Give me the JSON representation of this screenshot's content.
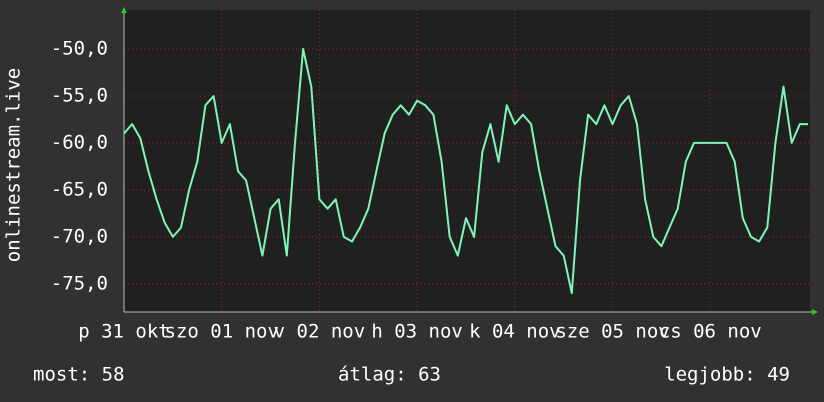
{
  "chart_data": {
    "type": "line",
    "y_label": "onlinestream.live",
    "x": [
      0,
      2,
      4,
      6,
      8,
      10,
      12,
      14,
      16,
      18,
      20,
      22,
      24,
      26,
      28,
      30,
      32,
      34,
      36,
      38,
      40,
      42,
      44,
      46,
      48,
      50,
      52,
      54,
      56,
      58,
      60,
      62,
      64,
      66,
      68,
      70,
      72,
      74,
      76,
      78,
      80,
      82,
      84,
      86,
      88,
      90,
      92,
      94,
      96,
      98,
      100,
      102,
      104,
      106,
      108,
      110,
      112,
      114,
      116,
      118,
      120,
      122,
      124,
      126,
      128,
      130,
      132,
      134,
      136,
      138,
      140,
      142,
      144,
      146,
      148,
      150,
      152,
      154,
      156,
      158,
      160,
      162,
      164,
      166,
      168
    ],
    "series": [
      {
        "color": "#7ff5b8",
        "values": [
          -59,
          -58,
          -59.5,
          -63,
          -66,
          -68.5,
          -70,
          -69,
          -65,
          -62,
          -56,
          -55,
          -60,
          -58,
          -63,
          -64,
          -68,
          -72,
          -67,
          -66,
          -72,
          -60,
          -50,
          -54,
          -66,
          -67,
          -66,
          -70,
          -70.5,
          -69,
          -67,
          -63,
          -59,
          -57,
          -56,
          -57,
          -55.5,
          -56,
          -57,
          -62,
          -70,
          -72,
          -68,
          -70,
          -61,
          -58,
          -62,
          -56,
          -58,
          -57,
          -58,
          -63,
          -67,
          -71,
          -72,
          -76,
          -64,
          -57,
          -58,
          -56,
          -58,
          -56,
          -55,
          -58,
          -66,
          -70,
          -71,
          -69,
          -67,
          -62,
          -60,
          -60,
          -60,
          -60,
          -60,
          -62,
          -68,
          -70,
          -70.5,
          -69,
          -60,
          -54,
          -60,
          -58,
          -58
        ]
      }
    ],
    "xlim": [
      0,
      168.5
    ],
    "xticks": [
      {
        "value": 0,
        "label": "p 31 okt"
      },
      {
        "value": 24,
        "label": "szo 01 nov"
      },
      {
        "value": 48,
        "label": "v 02 nov"
      },
      {
        "value": 72,
        "label": "h 03 nov"
      },
      {
        "value": 96,
        "label": "k 04 nov"
      },
      {
        "value": 120,
        "label": "sze 05 nov"
      },
      {
        "value": 144,
        "label": "cs 06 nov"
      }
    ],
    "ylim": [
      -78,
      -45.85
    ],
    "yticks": [
      {
        "value": -75,
        "label": "-75,0"
      },
      {
        "value": -70,
        "label": "-70,0"
      },
      {
        "value": -65,
        "label": "-65,0"
      },
      {
        "value": -60,
        "label": "-60,0"
      },
      {
        "value": -55,
        "label": "-55,0"
      },
      {
        "value": -50,
        "label": "-50,0"
      }
    ],
    "grid": true,
    "summary": [
      "most: 58",
      "átlag: 63",
      "legjobb: 49"
    ]
  }
}
